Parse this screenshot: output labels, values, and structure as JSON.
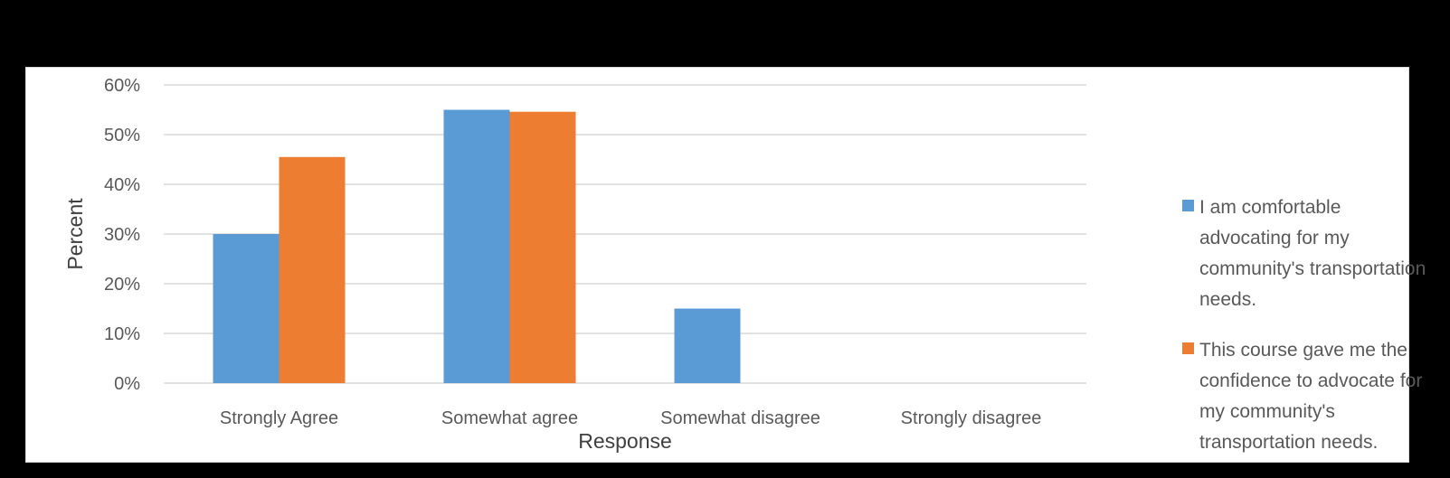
{
  "colors": {
    "series1": "#5b9bd5",
    "series2": "#ed7d31",
    "grid": "#d9d9d9",
    "text": "#595959"
  },
  "chart_data": {
    "type": "bar",
    "categories": [
      "Strongly Agree",
      "Somewhat agree",
      "Somewhat disagree",
      "Strongly disagree"
    ],
    "series": [
      {
        "name": "I am comfortable advocating for my community's transportation needs.",
        "values": [
          30,
          55,
          15,
          0
        ]
      },
      {
        "name": "This course gave me the confidence to advocate for my community's transportation needs.",
        "values": [
          45.5,
          54.6,
          0,
          0
        ]
      }
    ],
    "yticks": [
      "0%",
      "10%",
      "20%",
      "30%",
      "40%",
      "50%",
      "60%"
    ],
    "ylim": [
      0,
      60
    ],
    "xlabel": "Response",
    "ylabel": "Percent",
    "grid": true,
    "legend_position": "right"
  }
}
